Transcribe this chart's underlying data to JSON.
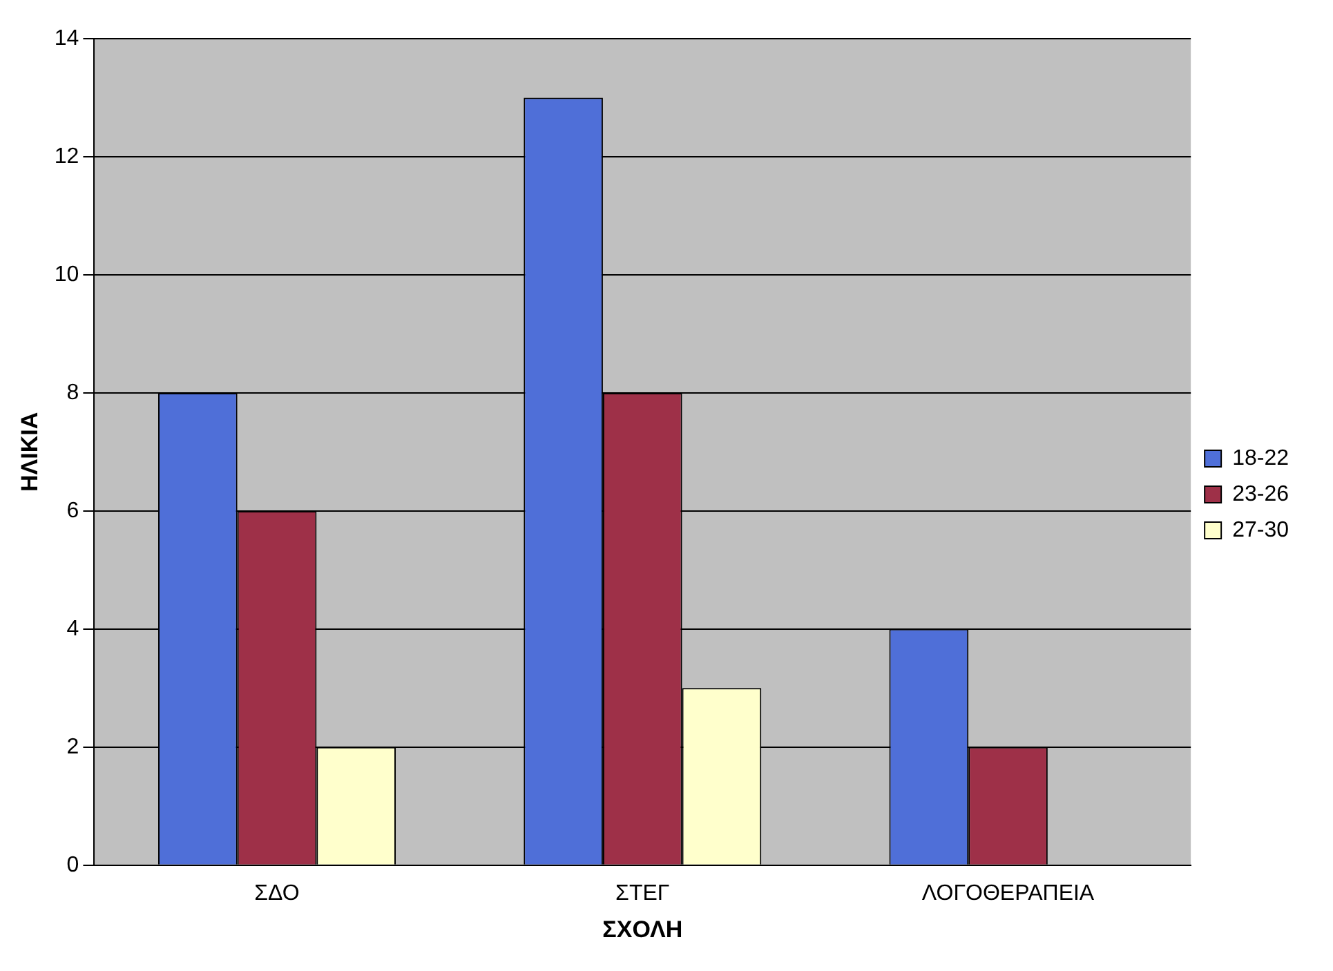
{
  "chart_data": {
    "type": "bar",
    "xlabel": "ΣΧΟΛΗ",
    "ylabel": "ΗΛΙΚΙΑ",
    "categories": [
      "ΣΔΟ",
      "ΣΤΕΓ",
      "ΛΟΓΟΘΕΡΑΠΕΙΑ"
    ],
    "series": [
      {
        "name": "18-22",
        "color": "#4f6fd8",
        "values": [
          8,
          13,
          4
        ]
      },
      {
        "name": "23-26",
        "color": "#9e3048",
        "values": [
          6,
          8,
          2
        ]
      },
      {
        "name": "27-30",
        "color": "#ffffcc",
        "values": [
          2,
          3,
          null
        ]
      }
    ],
    "ylim": [
      0,
      14
    ],
    "yticks": [
      0,
      2,
      4,
      6,
      8,
      10,
      12,
      14
    ],
    "grid": "y",
    "legend": "right"
  }
}
